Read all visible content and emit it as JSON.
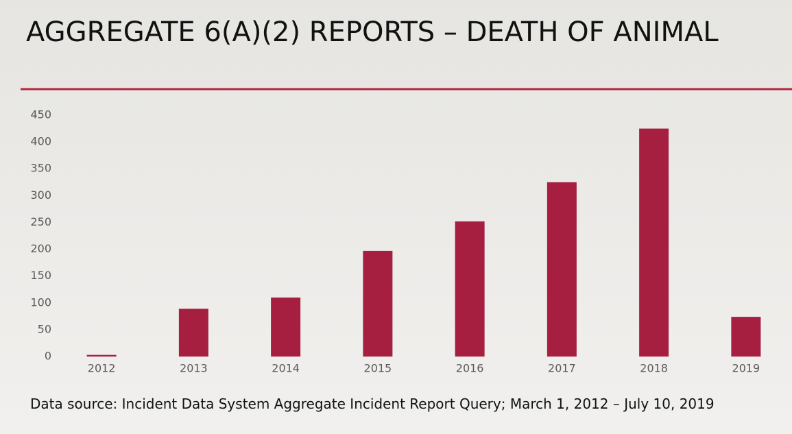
{
  "chart_data": {
    "type": "bar",
    "title": "AGGREGATE 6(A)(2) REPORTS – DEATH OF ANIMAL",
    "categories": [
      "2012",
      "2013",
      "2014",
      "2015",
      "2016",
      "2017",
      "2018",
      "2019"
    ],
    "values": [
      3,
      89,
      110,
      197,
      252,
      325,
      425,
      74
    ],
    "color": "#a61f40",
    "ylim": [
      0,
      450
    ],
    "yticks": [
      0,
      50,
      100,
      150,
      200,
      250,
      300,
      350,
      400,
      450
    ],
    "grid": false,
    "note": "Data source: Incident Data System Aggregate Incident Report Query; March 1, 2012 – July 10, 2019"
  }
}
